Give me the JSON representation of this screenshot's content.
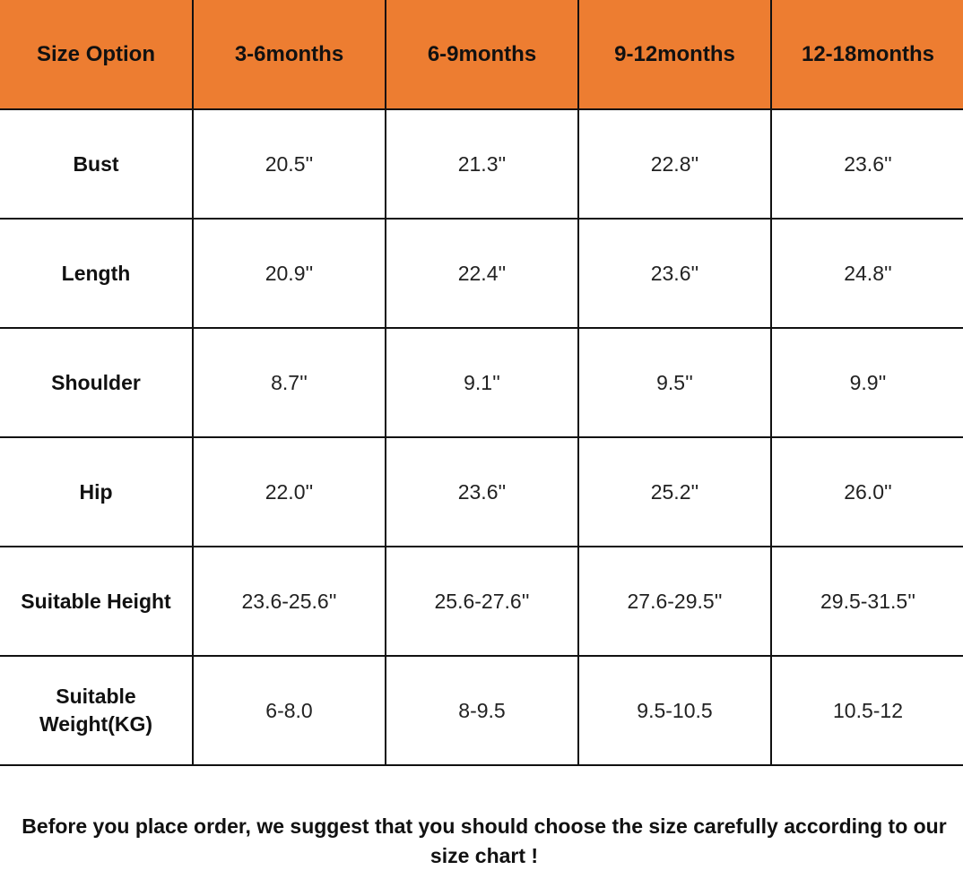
{
  "table": {
    "headers": [
      "Size Option",
      "3-6months",
      "6-9months",
      "9-12months",
      "12-18months"
    ],
    "rows": [
      {
        "label": "Bust",
        "values": [
          "20.5''",
          "21.3''",
          "22.8''",
          "23.6''"
        ]
      },
      {
        "label": "Length",
        "values": [
          "20.9''",
          "22.4''",
          "23.6''",
          "24.8''"
        ]
      },
      {
        "label": "Shoulder",
        "values": [
          "8.7''",
          "9.1''",
          "9.5''",
          "9.9''"
        ]
      },
      {
        "label": "Hip",
        "values": [
          "22.0''",
          "23.6''",
          "25.2''",
          "26.0''"
        ]
      },
      {
        "label": "Suitable Height",
        "values": [
          "23.6-25.6''",
          "25.6-27.6''",
          "27.6-29.5''",
          "29.5-31.5''"
        ]
      },
      {
        "label": "Suitable Weight(KG)",
        "values": [
          "6-8.0",
          "8-9.5",
          "9.5-10.5",
          "10.5-12"
        ]
      }
    ],
    "header_color": "#ED7D31"
  },
  "note": "Before you place order, we suggest that you should choose the size carefully according to our size chart !"
}
